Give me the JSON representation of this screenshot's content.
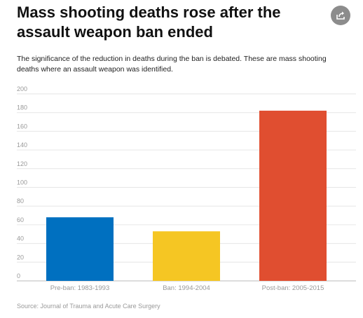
{
  "header": {
    "title": "Mass shooting deaths rose after the assault weapon ban ended",
    "subtitle": "The significance of the reduction in deaths during the ban is debated. These are mass shooting deaths where an assault weapon was identified.",
    "share_icon": "share-icon"
  },
  "footer": {
    "source": "Source: Journal of Trauma and Acute Care Surgery"
  },
  "chart_data": {
    "type": "bar",
    "categories": [
      "Pre-ban: 1983-1993",
      "Ban: 1994-2004",
      "Post-ban: 2005-2015"
    ],
    "values": [
      68,
      53,
      182
    ],
    "colors": [
      "#0070c0",
      "#f5c623",
      "#e04e30"
    ],
    "ylim": [
      0,
      200
    ],
    "yticks": [
      0,
      20,
      40,
      60,
      80,
      100,
      120,
      140,
      160,
      180,
      200
    ],
    "grid": true,
    "legend": "none",
    "xlabel": "",
    "ylabel": ""
  }
}
